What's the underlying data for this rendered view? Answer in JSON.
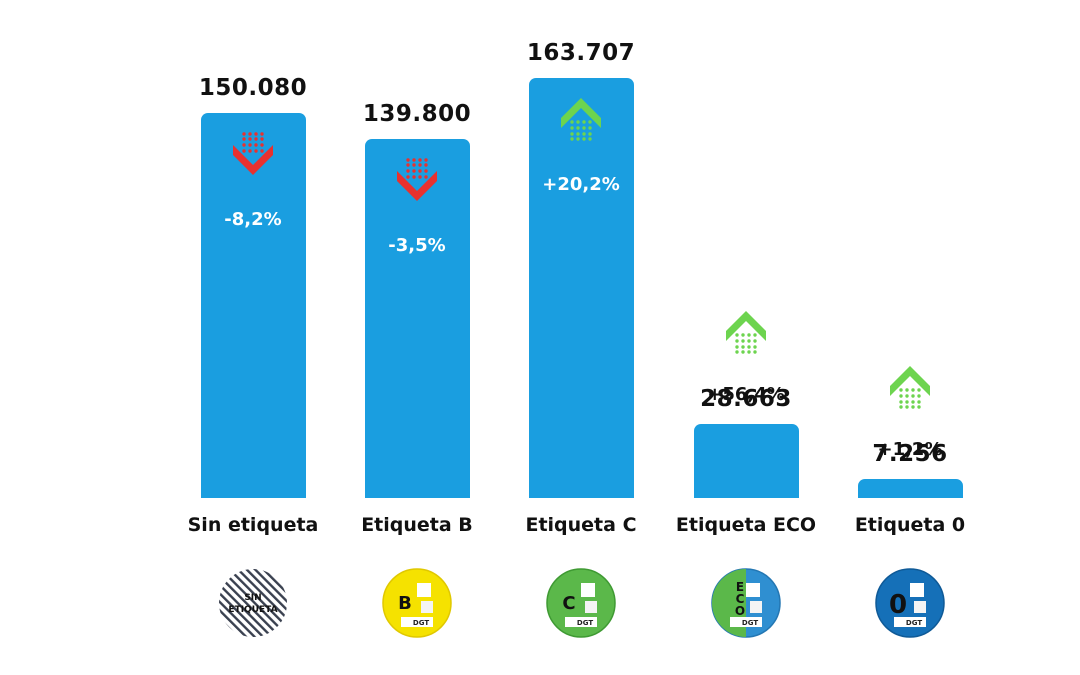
{
  "chart_data": {
    "type": "bar",
    "categories": [
      "Sin etiqueta",
      "Etiqueta B",
      "Etiqueta C",
      "Etiqueta ECO",
      "Etiqueta 0"
    ],
    "values": [
      150080,
      139800,
      163707,
      28663,
      7256
    ],
    "value_labels": [
      "150.080",
      "139.800",
      "163.707",
      "28.663",
      "7.256"
    ],
    "changes": [
      "-8,2%",
      "-3,5%",
      "+20,2%",
      "+56,4%",
      "+1,2%"
    ],
    "trend": [
      "down",
      "down",
      "up",
      "up",
      "up"
    ],
    "ylim": [
      0,
      163707
    ],
    "grid": false,
    "legend": "none",
    "colors": {
      "bar": "#1a9ee0",
      "down": "#e8312f",
      "up": "#6dd44f",
      "label": "#111111",
      "change_on_bar": "#ffffff",
      "change_off_bar": "#111111"
    }
  },
  "badges": [
    {
      "icon": "sin-etiqueta-badge-icon",
      "line1": "SIN",
      "line2": "ETIQUETA"
    },
    {
      "icon": "etiqueta-b-badge-icon",
      "letter": "B",
      "brand": "DGT"
    },
    {
      "icon": "etiqueta-c-badge-icon",
      "letter": "C",
      "brand": "DGT"
    },
    {
      "icon": "etiqueta-eco-badge-icon",
      "letter": "ECO",
      "brand": "DGT"
    },
    {
      "icon": "etiqueta-0-badge-icon",
      "letter": "0",
      "brand": "DGT"
    }
  ]
}
